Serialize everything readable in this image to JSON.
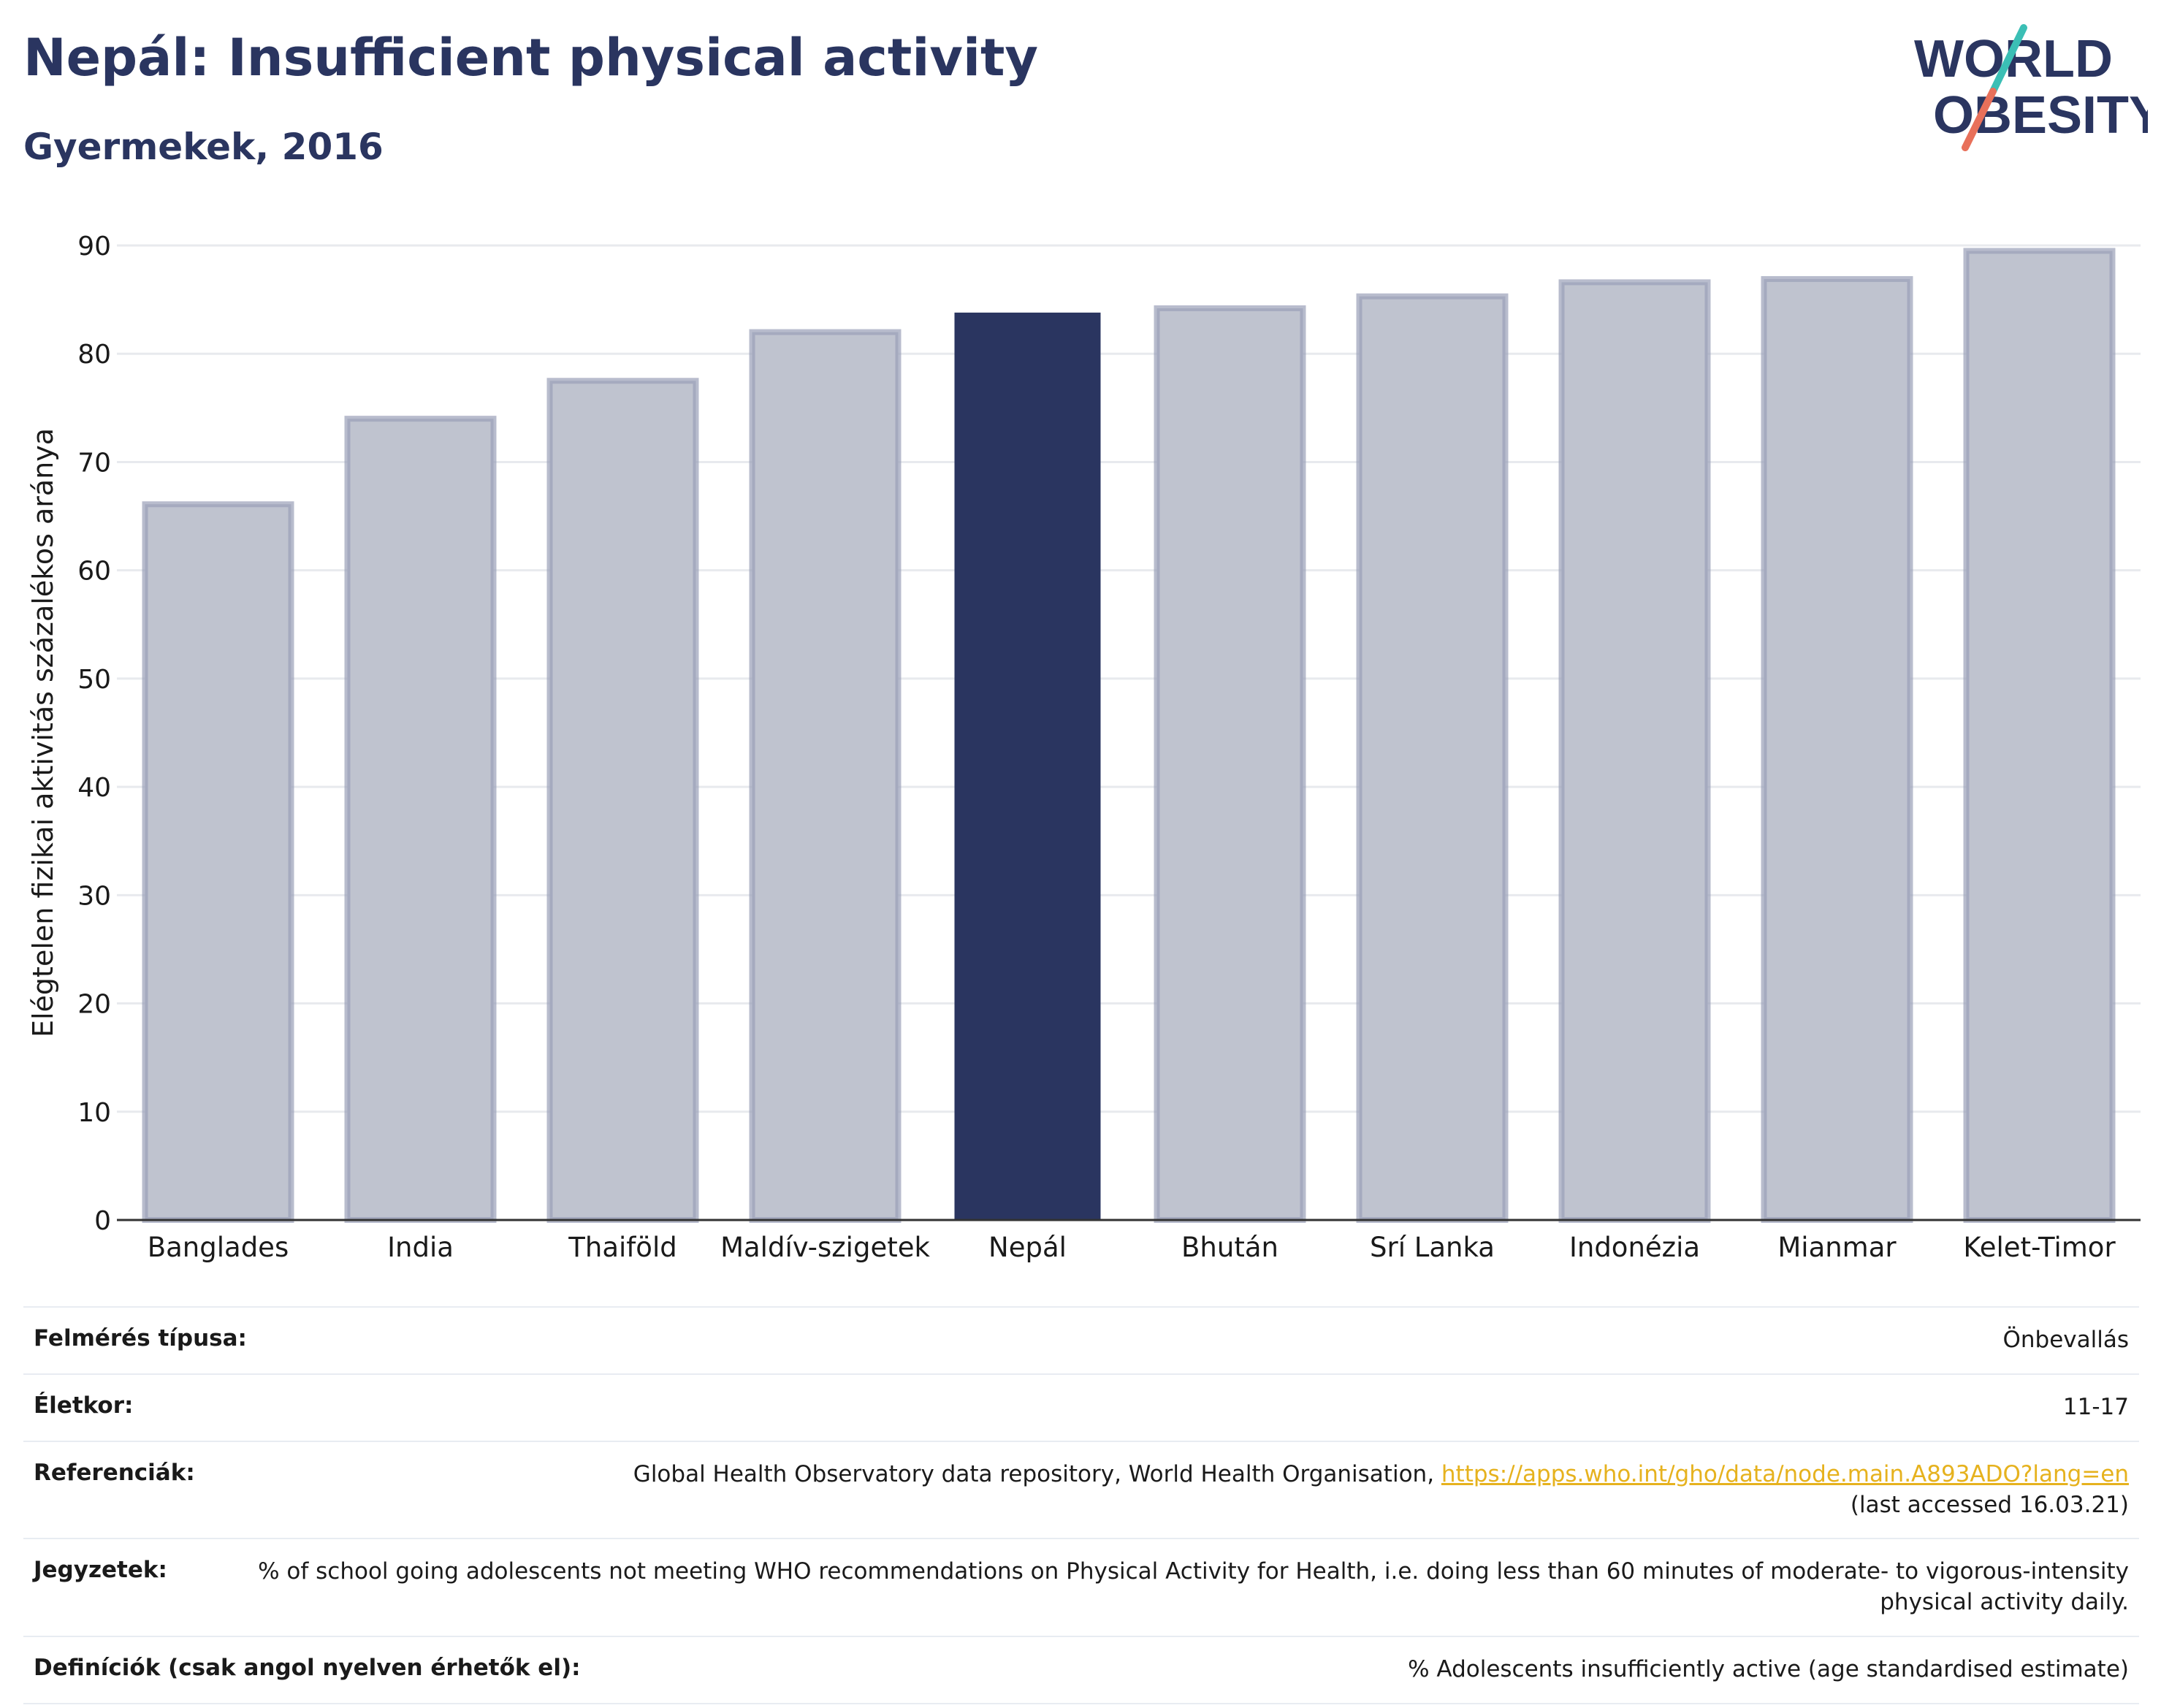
{
  "header": {
    "title": "Nepál: Insufficient physical activity",
    "subtitle": "Gyermekek, 2016"
  },
  "logo": {
    "line1": "WORLD",
    "line2": "OBESITY",
    "text_color": "#2a3560",
    "slash_color_top": "#3bbfb5",
    "slash_color_bottom": "#e8705a"
  },
  "chart_data": {
    "type": "bar",
    "title": "",
    "xlabel": "",
    "ylabel": "Elégtelen fizikai aktivitás százalékos aránya",
    "ylim": [
      0,
      90
    ],
    "yticks": [
      0,
      10,
      20,
      30,
      40,
      50,
      60,
      70,
      80,
      90
    ],
    "grid": true,
    "categories": [
      "Banglades",
      "India",
      "Thaiföld",
      "Maldív-szigetek",
      "Nepál",
      "Bhután",
      "Srí Lanka",
      "Indonézia",
      "Mianmar",
      "Kelet-Timor"
    ],
    "values": [
      66.1,
      74.0,
      77.5,
      82.0,
      83.8,
      84.2,
      85.3,
      86.6,
      86.9,
      89.5
    ],
    "highlight": "Nepál",
    "colors": {
      "bar": "#bfc3cf",
      "bar_border": "#9aa0b8",
      "highlight": "#2a3560",
      "grid": "#e8eaee",
      "axis": "#333333"
    }
  },
  "meta": {
    "survey_label": "Felmérés típusa:",
    "survey_value": "Önbevallás",
    "age_label": "Életkor:",
    "age_value": "11-17",
    "ref_label": "Referenciák:",
    "ref_text": "Global Health Observatory data repository, World Health Organisation, ",
    "ref_link": "https://apps.who.int/gho/data/node.main.A893ADO?lang=en",
    "ref_accessed": "(last accessed 16.03.21)",
    "notes_label": "Jegyzetek:",
    "notes_value": "% of school going adolescents not meeting WHO recommendations on Physical Activity for Health, i.e. doing less than 60 minutes of moderate- to vigorous-intensity physical activity daily.",
    "def_label": "Definíciók (csak angol nyelven érhetők el):",
    "def_value": "% Adolescents insufficiently active (age standardised estimate)"
  }
}
